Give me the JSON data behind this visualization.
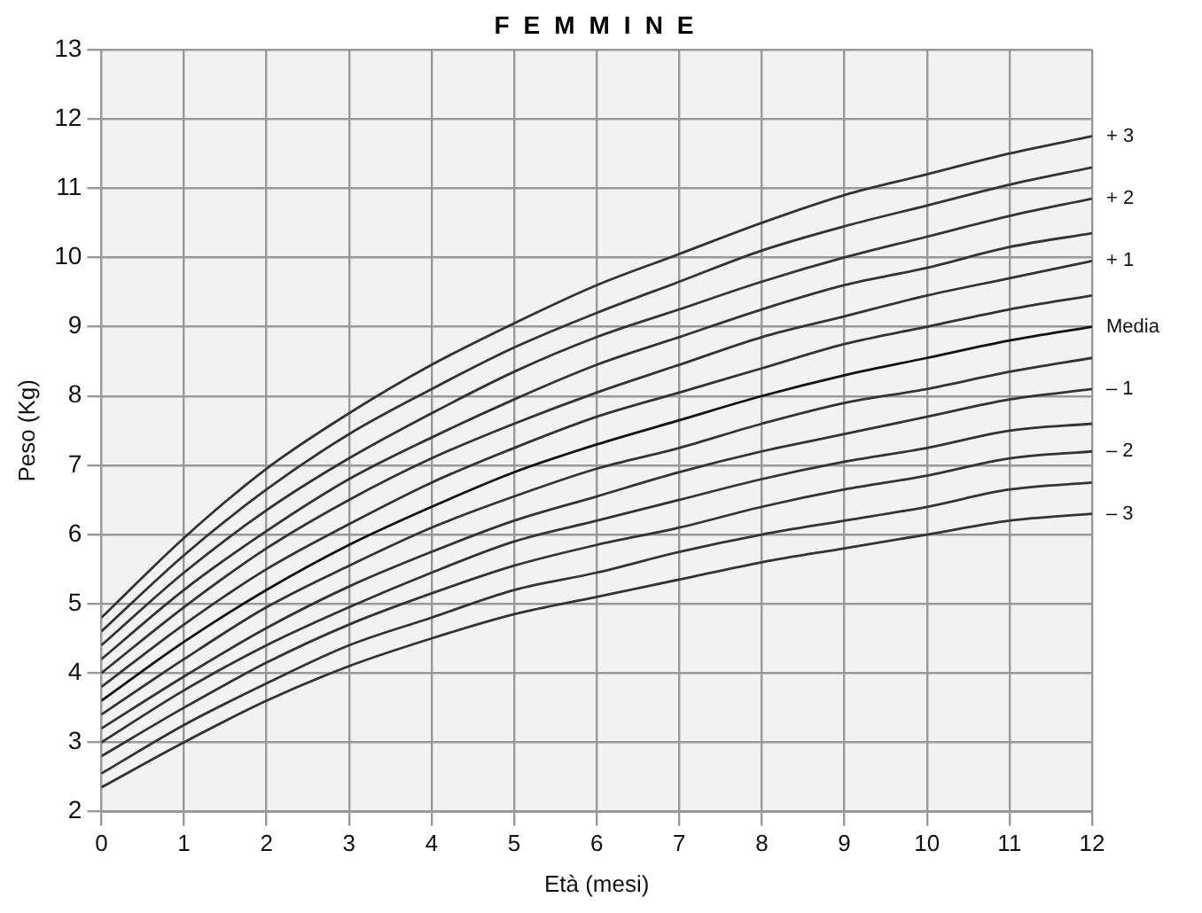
{
  "chart_data": {
    "type": "line",
    "title": "FEMMINE",
    "xlabel": "Età (mesi)",
    "ylabel": "Peso (Kg)",
    "x": [
      0,
      1,
      2,
      3,
      4,
      5,
      6,
      7,
      8,
      9,
      10,
      11,
      12
    ],
    "xlim": [
      0,
      12
    ],
    "xticks": [
      0,
      1,
      2,
      3,
      4,
      5,
      6,
      7,
      8,
      9,
      10,
      11,
      12
    ],
    "ylim": [
      2,
      13
    ],
    "yticks": [
      2,
      3,
      4,
      5,
      6,
      7,
      8,
      9,
      10,
      11,
      12,
      13
    ],
    "grid": true,
    "legend": false,
    "marker": "none",
    "line_style": "solid",
    "series": [
      {
        "name": "+ 3",
        "color": "#333333",
        "values": [
          4.8,
          5.95,
          6.95,
          7.75,
          8.45,
          9.05,
          9.6,
          10.05,
          10.5,
          10.9,
          11.2,
          11.5,
          11.75
        ]
      },
      {
        "color": "#333333",
        "values": [
          4.6,
          5.7,
          6.65,
          7.45,
          8.1,
          8.7,
          9.2,
          9.65,
          10.1,
          10.45,
          10.75,
          11.05,
          11.3
        ]
      },
      {
        "name": "+ 2",
        "color": "#333333",
        "values": [
          4.4,
          5.45,
          6.35,
          7.1,
          7.75,
          8.35,
          8.85,
          9.25,
          9.65,
          10.0,
          10.3,
          10.6,
          10.85
        ]
      },
      {
        "color": "#333333",
        "values": [
          4.2,
          5.2,
          6.05,
          6.8,
          7.4,
          7.95,
          8.45,
          8.85,
          9.25,
          9.6,
          9.85,
          10.15,
          10.35
        ]
      },
      {
        "name": "+ 1",
        "color": "#333333",
        "values": [
          4.0,
          4.95,
          5.8,
          6.5,
          7.1,
          7.6,
          8.05,
          8.45,
          8.85,
          9.15,
          9.45,
          9.7,
          9.95
        ]
      },
      {
        "color": "#333333",
        "values": [
          3.8,
          4.7,
          5.5,
          6.15,
          6.75,
          7.25,
          7.7,
          8.05,
          8.4,
          8.75,
          9.0,
          9.25,
          9.45
        ]
      },
      {
        "name": "Media",
        "color": "#111111",
        "values": [
          3.6,
          4.45,
          5.2,
          5.85,
          6.4,
          6.9,
          7.3,
          7.65,
          8.0,
          8.3,
          8.55,
          8.8,
          9.0
        ]
      },
      {
        "color": "#333333",
        "values": [
          3.4,
          4.2,
          4.95,
          5.55,
          6.1,
          6.55,
          6.95,
          7.25,
          7.6,
          7.9,
          8.1,
          8.35,
          8.55
        ]
      },
      {
        "name": "– 1",
        "color": "#333333",
        "values": [
          3.2,
          3.95,
          4.65,
          5.25,
          5.75,
          6.2,
          6.55,
          6.9,
          7.2,
          7.45,
          7.7,
          7.95,
          8.1
        ]
      },
      {
        "color": "#333333",
        "values": [
          3.0,
          3.75,
          4.4,
          4.95,
          5.45,
          5.9,
          6.2,
          6.5,
          6.8,
          7.05,
          7.25,
          7.5,
          7.6
        ]
      },
      {
        "name": "– 2",
        "color": "#333333",
        "values": [
          2.8,
          3.5,
          4.15,
          4.7,
          5.15,
          5.55,
          5.85,
          6.1,
          6.4,
          6.65,
          6.85,
          7.1,
          7.2
        ]
      },
      {
        "color": "#333333",
        "values": [
          2.55,
          3.25,
          3.85,
          4.4,
          4.8,
          5.2,
          5.45,
          5.75,
          6.0,
          6.2,
          6.4,
          6.65,
          6.75
        ]
      },
      {
        "name": "– 3",
        "color": "#333333",
        "values": [
          2.35,
          3.0,
          3.6,
          4.1,
          4.5,
          4.85,
          5.1,
          5.35,
          5.6,
          5.8,
          6.0,
          6.2,
          6.3
        ]
      }
    ]
  }
}
